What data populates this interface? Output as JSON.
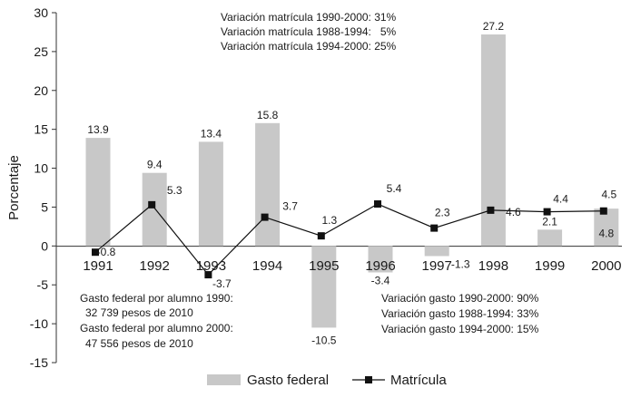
{
  "chart_data": {
    "type": "bar",
    "title": "",
    "xlabel": "",
    "ylabel": "Porcentaje",
    "ylim": [
      -15,
      30
    ],
    "yticks": [
      "30",
      "25",
      "20",
      "15",
      "10",
      "5",
      "0",
      "-5",
      "-10",
      "-15"
    ],
    "yticks_values": [
      30,
      25,
      20,
      15,
      10,
      5,
      0,
      -5,
      -10,
      -15
    ],
    "categories": [
      "1991",
      "1992",
      "1993",
      "1994",
      "1995",
      "1996",
      "1997",
      "1998",
      "1999",
      "2000"
    ],
    "series": [
      {
        "name": "Gasto federal",
        "kind": "bar",
        "color": "#c8c8c8",
        "values": [
          13.9,
          9.4,
          13.4,
          15.8,
          -10.5,
          -3.4,
          -1.3,
          27.2,
          2.1,
          4.8
        ],
        "labels": [
          "13.9",
          "9.4",
          "13.4",
          "15.8",
          "-10.5",
          "-3.4",
          "-1.3",
          "27.2",
          "2.1",
          "4.8"
        ]
      },
      {
        "name": "Matrícula",
        "kind": "line",
        "color": "#111111",
        "values": [
          -0.8,
          5.3,
          -3.7,
          3.7,
          1.3,
          5.4,
          2.3,
          4.6,
          4.4,
          4.5
        ],
        "labels": [
          "-0.8",
          "5.3",
          "-3.7",
          "3.7",
          "1.3",
          "5.4",
          "2.3",
          "4.6",
          "4.4",
          "4.5"
        ]
      }
    ],
    "legend": {
      "placement": "bottom-center",
      "entries": [
        "Gasto federal",
        "Matrícula"
      ]
    },
    "annotations": {
      "top": [
        "Variación matrícula 1990-2000: 31%",
        "Variación matrícula 1988-1994:   5%",
        "Variación matrícula 1994-2000: 25%"
      ],
      "bottom_left": [
        "Gasto federal por alumno 1990:",
        "32 739 pesos de 2010",
        "Gasto federal por alumno 2000:",
        "47 556 pesos de 2010"
      ],
      "bottom_right": [
        "Variación gasto 1990-2000: 90%",
        "Variación gasto 1988-1994: 33%",
        "Variación gasto 1994-2000: 15%"
      ]
    }
  }
}
